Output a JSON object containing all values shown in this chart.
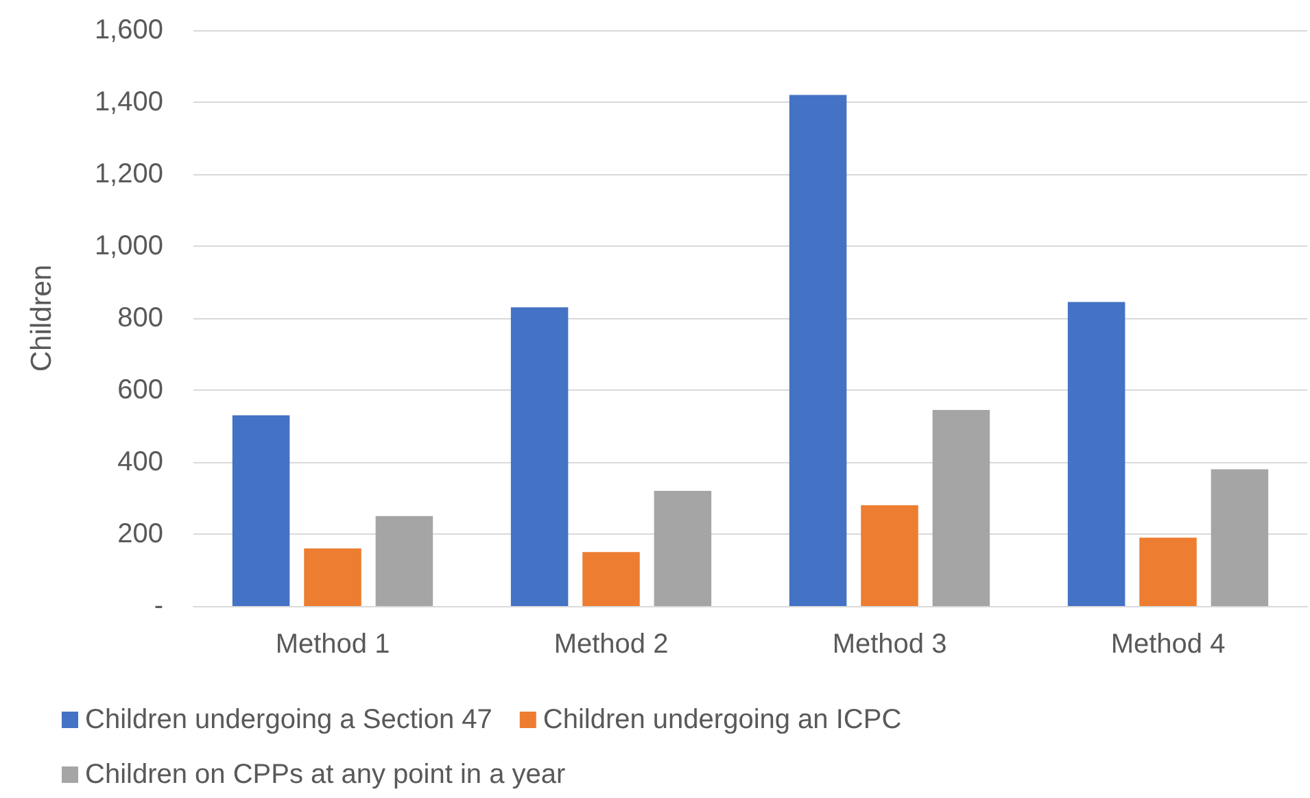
{
  "chart_data": {
    "type": "bar",
    "ylabel": "Children",
    "categories": [
      "Method 1",
      "Method 2",
      "Method 3",
      "Method 4"
    ],
    "series": [
      {
        "name": "Children undergoing a Section 47",
        "color": "#4472c4",
        "values": [
          530,
          830,
          1420,
          845
        ]
      },
      {
        "name": "Children undergoing an ICPC",
        "color": "#ed7d31",
        "values": [
          160,
          150,
          280,
          190
        ]
      },
      {
        "name": "Children on CPPs at any point in a year",
        "color": "#a5a5a5",
        "values": [
          250,
          320,
          545,
          380
        ]
      }
    ],
    "ylim": [
      0,
      1600
    ],
    "yticks": [
      {
        "value": 0,
        "label": "-"
      },
      200,
      400,
      600,
      800,
      {
        "value": 1000,
        "label": "1,000"
      },
      {
        "value": 1200,
        "label": "1,200"
      },
      {
        "value": 1400,
        "label": "1,400"
      },
      {
        "value": 1600,
        "label": "1,600"
      }
    ],
    "grid": "y",
    "legend": "bottom"
  }
}
